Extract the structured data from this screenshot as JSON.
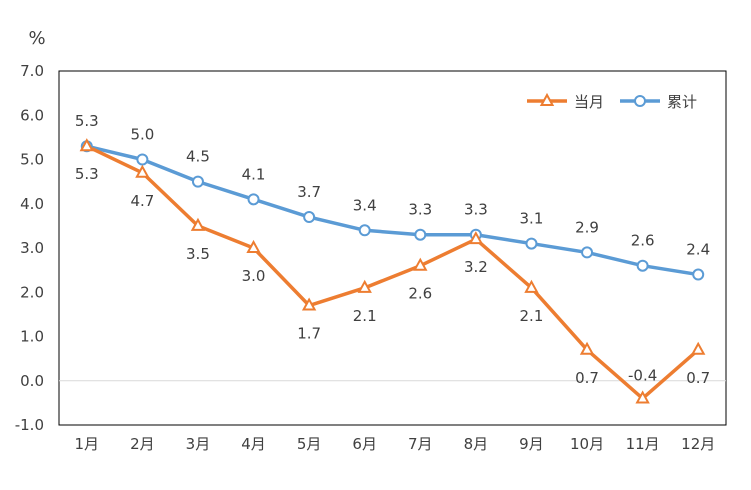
{
  "chart_data": {
    "type": "line",
    "unit_label": "%",
    "categories": [
      "1月",
      "2月",
      "3月",
      "4月",
      "5月",
      "6月",
      "7月",
      "8月",
      "9月",
      "10月",
      "11月",
      "12月"
    ],
    "ylim": [
      -1.0,
      7.0
    ],
    "yticks": [
      "7.0",
      "6.0",
      "5.0",
      "4.0",
      "3.0",
      "2.0",
      "1.0",
      "0.0",
      "-1.0"
    ],
    "ytick_values": [
      7,
      6,
      5,
      4,
      3,
      2,
      1,
      0,
      -1
    ],
    "grid": false,
    "legend_position": "top-right",
    "series": [
      {
        "name": "当月",
        "color": "#ED7D31",
        "marker": "triangle",
        "values": [
          5.3,
          4.7,
          3.5,
          3.0,
          1.7,
          2.1,
          2.6,
          3.2,
          2.1,
          0.7,
          -0.4,
          0.7
        ],
        "labels": [
          "5.3",
          "4.7",
          "3.5",
          "3.0",
          "1.7",
          "2.1",
          "2.6",
          "3.2",
          "2.1",
          "0.7",
          "-0.4",
          "0.7"
        ]
      },
      {
        "name": "累计",
        "color": "#5B9BD5",
        "marker": "circle",
        "values": [
          5.3,
          5.0,
          4.5,
          4.1,
          3.7,
          3.4,
          3.3,
          3.3,
          3.1,
          2.9,
          2.6,
          2.4
        ],
        "labels": [
          "5.3",
          "5.0",
          "4.5",
          "4.1",
          "3.7",
          "3.4",
          "3.3",
          "3.3",
          "3.1",
          "2.9",
          "2.6",
          "2.4"
        ]
      }
    ]
  }
}
